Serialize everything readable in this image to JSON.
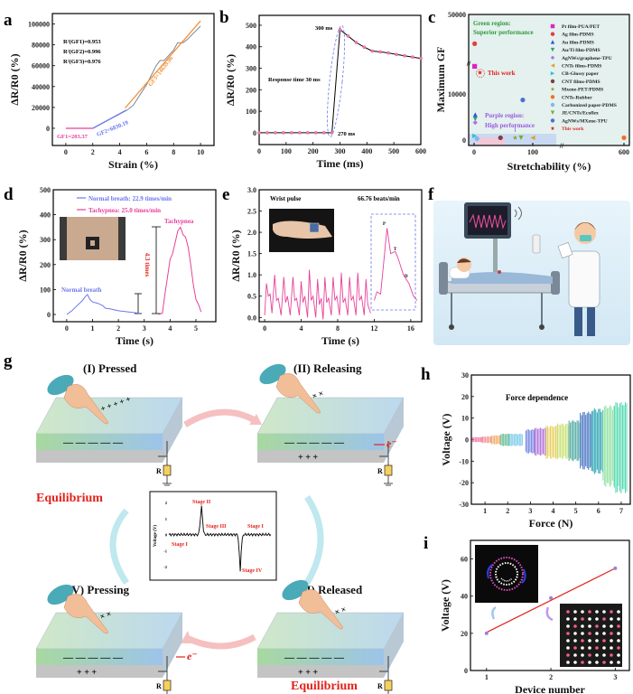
{
  "panel_labels": {
    "a": "a",
    "b": "b",
    "c": "c",
    "d": "d",
    "e": "e",
    "f": "f",
    "g": "g",
    "h": "h",
    "i": "i"
  },
  "colors": {
    "pink": "#e8409a",
    "blue": "#6a78ee",
    "orange": "#f0903a",
    "red": "#e3221b",
    "green_text": "#2e9a3a",
    "purple_text": "#9a5ce0"
  },
  "chart_data": [
    {
      "panel": "a",
      "type": "line",
      "xlabel": "Strain (%)",
      "ylabel": "ΔR/R0 (%)",
      "xlim": [
        -1,
        11
      ],
      "ylim": [
        -16500,
        110000
      ],
      "xticks": [
        0,
        2,
        4,
        6,
        8,
        10
      ],
      "yticks": [
        0,
        20000,
        40000,
        60000,
        80000,
        100000
      ],
      "measured": {
        "color": "#6d7a8c",
        "points": [
          [
            0,
            0
          ],
          [
            2,
            0
          ],
          [
            4.5,
            17000
          ],
          [
            5,
            22000
          ],
          [
            6,
            42000
          ],
          [
            6.7,
            60000
          ],
          [
            7,
            65000
          ],
          [
            7.3,
            65000
          ],
          [
            8,
            75000
          ],
          [
            8.3,
            82000
          ],
          [
            8.7,
            82000
          ],
          [
            9,
            85000
          ],
          [
            10,
            98000
          ]
        ]
      },
      "fits": [
        {
          "label": "GF1=203.37",
          "color": "#e8409a",
          "points": [
            [
              0,
              0
            ],
            [
              2,
              0
            ]
          ]
        },
        {
          "label": "GF2=6830.19",
          "color": "#6a78ee",
          "points": [
            [
              2,
              0
            ],
            [
              4.5,
              17500
            ]
          ]
        },
        {
          "label": "GF3=14639.96",
          "color": "#f0903a",
          "points": [
            [
              4.4,
              19500
            ],
            [
              10,
              103000
            ]
          ]
        }
      ],
      "r2": [
        "R²(GF1)=0.953",
        "R²(GF2)=0.996",
        "R²(GF3)=0.976"
      ]
    },
    {
      "panel": "b",
      "type": "line",
      "xlabel": "Time (ms)",
      "ylabel": "ΔR/R0 (%)",
      "xlim": [
        0,
        600
      ],
      "ylim": [
        -55,
        546
      ],
      "xticks": [
        0,
        100,
        200,
        300,
        400,
        500,
        600
      ],
      "yticks": [
        0,
        100,
        200,
        300,
        400,
        500
      ],
      "points": [
        [
          0,
          0
        ],
        [
          30,
          0
        ],
        [
          60,
          0
        ],
        [
          90,
          0
        ],
        [
          120,
          0
        ],
        [
          150,
          0
        ],
        [
          180,
          0
        ],
        [
          210,
          0
        ],
        [
          240,
          0
        ],
        [
          270,
          0
        ],
        [
          300,
          480
        ],
        [
          330,
          450
        ],
        [
          360,
          420
        ],
        [
          390,
          398
        ],
        [
          420,
          380
        ],
        [
          450,
          376
        ],
        [
          480,
          371
        ],
        [
          510,
          364
        ],
        [
          540,
          358
        ],
        [
          570,
          352
        ],
        [
          600,
          346
        ]
      ],
      "annotations": [
        "300 ms",
        "270 ms",
        "Response time 30 ms"
      ]
    },
    {
      "panel": "c",
      "type": "scatter",
      "xlabel": "Stretchability (%)",
      "ylabel": "Maximum GF",
      "xaxis_break": [
        150,
        550
      ],
      "yaxis_break": [
        16500,
        20000
      ],
      "xticks": [
        0,
        100,
        600
      ],
      "yticks": [
        0,
        10000,
        50000
      ],
      "regions": [
        {
          "label": "Green region:",
          "label2": "Superior performance",
          "color": "#2e9a3a",
          "fill": "#e4f1ee"
        },
        {
          "label": "Purple region:",
          "label2": "High performance",
          "color": "#9a5ce0",
          "fill": "#c9d9f2"
        }
      ],
      "this_work_label": "This work",
      "series": [
        {
          "name": "Pt film-PUA/PET",
          "marker": "square",
          "color": "#e020c8",
          "x": 1,
          "y": 16000
        },
        {
          "name": "Ag film-PDMS",
          "marker": "circle",
          "color": "#e04040",
          "x": 1,
          "y": 32000
        },
        {
          "name": "Au film-PDMS",
          "marker": "triangle-up",
          "color": "#3050e0",
          "x": 2,
          "y": 5500
        },
        {
          "name": "Au/Ti film-PDMS",
          "marker": "triangle-down",
          "color": "#30a070",
          "x": 2,
          "y": 4600
        },
        {
          "name": "AgNWs/graphene-TPU",
          "marker": "diamond",
          "color": "#b070e0",
          "x": 2,
          "y": 3800
        },
        {
          "name": "CNTs films-PDMS",
          "marker": "triangle-left",
          "color": "#e0a030",
          "x": 100,
          "y": 500
        },
        {
          "name": "CB-Glossy paper",
          "marker": "triangle-right",
          "color": "#30c0d0",
          "x": 1,
          "y": 900
        },
        {
          "name": "CNT films-PDMS",
          "marker": "circle",
          "color": "#7a4040",
          "x": 45,
          "y": 500
        },
        {
          "name": "Mxene-PET/PDMS",
          "marker": "star",
          "color": "#90a030",
          "x": 70,
          "y": 500
        },
        {
          "name": "CNTs-Rubber",
          "marker": "circle",
          "color": "#f07020",
          "x": 600,
          "y": 500
        },
        {
          "name": "Carbonized paper-PDMS",
          "marker": "circle",
          "color": "#80b8e8",
          "x": 5,
          "y": 300
        },
        {
          "name": "JE/CNTs/Ecoflex",
          "marker": "triangle-down",
          "color": "#70b030",
          "x": 80,
          "y": 500
        },
        {
          "name": "AgNWs/MXene-TPU",
          "marker": "circle",
          "color": "#5070d0",
          "x": 83,
          "y": 8700
        },
        {
          "name": "This work",
          "marker": "star",
          "color": "#e3221b",
          "x": 10,
          "y": 14640
        }
      ]
    },
    {
      "panel": "d",
      "type": "line",
      "xlabel": "Time (s)",
      "ylabel": "ΔR/R0 (%)",
      "xlim": [
        -0.52,
        5.77
      ],
      "ylim": [
        -29,
        500
      ],
      "xticks": [
        0,
        1,
        2,
        3,
        4,
        5
      ],
      "yticks": [
        0,
        100,
        200,
        300,
        400,
        500
      ],
      "series": [
        {
          "name": "Normal breath: 22.9 times/min",
          "color": "#6a78ee",
          "points": [
            [
              0,
              0
            ],
            [
              0.2,
              15
            ],
            [
              0.4,
              35
            ],
            [
              0.6,
              55
            ],
            [
              0.75,
              75
            ],
            [
              0.8,
              80
            ],
            [
              0.9,
              60
            ],
            [
              1.0,
              50
            ],
            [
              1.2,
              45
            ],
            [
              1.4,
              35
            ],
            [
              1.5,
              25
            ],
            [
              1.7,
              22
            ],
            [
              2,
              15
            ],
            [
              2.4,
              10
            ],
            [
              2.8,
              5
            ]
          ]
        },
        {
          "name": "Tachypnea: 25.0 times/min",
          "color": "#e8409a",
          "points": [
            [
              3.55,
              0
            ],
            [
              3.7,
              5
            ],
            [
              3.8,
              80
            ],
            [
              3.9,
              150
            ],
            [
              4.0,
              220
            ],
            [
              4.1,
              245
            ],
            [
              4.2,
              290
            ],
            [
              4.3,
              335
            ],
            [
              4.4,
              350
            ],
            [
              4.5,
              320
            ],
            [
              4.6,
              310
            ],
            [
              4.7,
              270
            ],
            [
              4.8,
              200
            ],
            [
              4.9,
              120
            ],
            [
              5.0,
              60
            ],
            [
              5.1,
              40
            ],
            [
              5.2,
              10
            ]
          ]
        }
      ],
      "annotations": {
        "normal": "Normal breath",
        "tachy": "Tachypnea",
        "ratio": "4.3 times"
      }
    },
    {
      "panel": "e",
      "type": "line",
      "xlabel": "Time (s)",
      "ylabel": "ΔR/R0 (%)",
      "xlim": [
        -0.6,
        17.2
      ],
      "ylim": [
        -0.1,
        3.0
      ],
      "xticks": [
        0,
        4,
        8,
        12,
        16
      ],
      "yticks": [
        0.0,
        0.5,
        1.0,
        1.5,
        2.0,
        2.5,
        3.0
      ],
      "ytick_labels": [
        "0.0",
        "0.5",
        "1.0",
        "1.5",
        "2.0",
        "2.5",
        "3.0"
      ],
      "title": "Wrist pulse",
      "rate": "66.76 beats/min",
      "color": "#e8409a",
      "points": [
        [
          0,
          0.05
        ],
        [
          0.2,
          0.8
        ],
        [
          0.4,
          0.5
        ],
        [
          0.6,
          0.55
        ],
        [
          0.8,
          0.1
        ],
        [
          1.1,
          1.0
        ],
        [
          1.3,
          0.4
        ],
        [
          1.5,
          0.45
        ],
        [
          1.8,
          0.05
        ],
        [
          2.1,
          0.95
        ],
        [
          2.3,
          0.35
        ],
        [
          2.5,
          0.5
        ],
        [
          2.8,
          0.05
        ],
        [
          3.1,
          0.95
        ],
        [
          3.3,
          0.4
        ],
        [
          3.5,
          0.45
        ],
        [
          3.8,
          0.05
        ],
        [
          4.0,
          0.85
        ],
        [
          4.2,
          0.35
        ],
        [
          4.4,
          0.5
        ],
        [
          4.7,
          0.0
        ],
        [
          4.9,
          1.12
        ],
        [
          5.1,
          0.4
        ],
        [
          5.3,
          0.5
        ],
        [
          5.6,
          0.0
        ],
        [
          5.8,
          0.9
        ],
        [
          6.0,
          0.3
        ],
        [
          6.2,
          0.45
        ],
        [
          6.4,
          -0.05
        ],
        [
          6.6,
          0.95
        ],
        [
          6.8,
          0.35
        ],
        [
          7.0,
          0.45
        ],
        [
          7.3,
          0.05
        ],
        [
          7.5,
          0.95
        ],
        [
          7.7,
          0.4
        ],
        [
          7.9,
          0.5
        ],
        [
          8.2,
          0.05
        ],
        [
          8.4,
          1.05
        ],
        [
          8.6,
          0.35
        ],
        [
          8.8,
          0.45
        ],
        [
          9.1,
          0.05
        ],
        [
          9.3,
          0.95
        ],
        [
          9.5,
          0.4
        ],
        [
          9.7,
          0.5
        ],
        [
          10.0,
          0.05
        ],
        [
          10.2,
          1.05
        ],
        [
          10.4,
          0.4
        ],
        [
          10.6,
          0.5
        ],
        [
          10.9,
          0.05
        ],
        [
          11.1,
          0.9
        ],
        [
          11.3,
          0.3
        ],
        [
          11.6,
          0.1
        ]
      ],
      "zoom_points": [
        [
          12,
          0.4
        ],
        [
          12.3,
          0.6
        ],
        [
          12.7,
          0.55
        ],
        [
          13,
          1.2
        ],
        [
          13.4,
          2.1
        ],
        [
          13.8,
          1.5
        ],
        [
          14.3,
          1.55
        ],
        [
          14.6,
          1.4
        ],
        [
          15.2,
          1.0
        ],
        [
          15.8,
          0.8
        ],
        [
          16.3,
          0.5
        ],
        [
          16.7,
          0.4
        ]
      ],
      "wave_labels": [
        "P",
        "T",
        "D"
      ]
    },
    {
      "panel": "h",
      "type": "bar",
      "xlabel": "Force (N)",
      "ylabel": "Voltage (V)",
      "title": "Force dependence",
      "xlim": [
        0.4,
        7.4
      ],
      "ylim": [
        -30,
        30
      ],
      "xticks": [
        1,
        2,
        3,
        4,
        5,
        6,
        7
      ],
      "yticks": [
        -30,
        -20,
        -10,
        0,
        10,
        20,
        30
      ],
      "groups": [
        {
          "from": 0.45,
          "to": 0.9,
          "max": 1.2,
          "min": -1.2,
          "color": "#f06ca0"
        },
        {
          "from": 0.9,
          "to": 1.3,
          "max": 1.5,
          "min": -1.6,
          "color": "#f08c8c"
        },
        {
          "from": 1.3,
          "to": 1.7,
          "max": 2.0,
          "min": -2.2,
          "color": "#f0a860"
        },
        {
          "from": 1.7,
          "to": 2.1,
          "max": 2.8,
          "min": -3.0,
          "color": "#60b890"
        },
        {
          "from": 2.1,
          "to": 2.7,
          "max": 2.8,
          "min": -3.0,
          "color": "#78c8e8"
        },
        {
          "from": 2.8,
          "to": 3.2,
          "max": 4.8,
          "min": -6.5,
          "color": "#7080e0"
        },
        {
          "from": 3.2,
          "to": 3.7,
          "max": 5.5,
          "min": -7.5,
          "color": "#b070d8"
        },
        {
          "from": 3.7,
          "to": 4.2,
          "max": 6.5,
          "min": -9.0,
          "color": "#e8d060"
        },
        {
          "from": 4.2,
          "to": 4.7,
          "max": 7.5,
          "min": -9.0,
          "color": "#c8e070"
        },
        {
          "from": 4.7,
          "to": 5.2,
          "max": 9.0,
          "min": -10.0,
          "color": "#4aa8a0"
        },
        {
          "from": 5.2,
          "to": 5.7,
          "max": 13.0,
          "min": -14.0,
          "color": "#4070c0"
        },
        {
          "from": 5.7,
          "to": 6.2,
          "max": 14.5,
          "min": -16.0,
          "color": "#20a0b0"
        },
        {
          "from": 6.2,
          "to": 6.7,
          "max": 16.0,
          "min": -22.0,
          "color": "#90e0a0"
        },
        {
          "from": 6.7,
          "to": 7.25,
          "max": 17.5,
          "min": -25.0,
          "color": "#50d8b0"
        }
      ]
    },
    {
      "panel": "i",
      "type": "line",
      "xlabel": "Device number",
      "ylabel": "Voltage (V)",
      "xlim": [
        0.75,
        3.22
      ],
      "ylim": [
        0,
        70
      ],
      "xticks": [
        1,
        2,
        3
      ],
      "yticks": [
        0,
        20,
        40,
        60
      ],
      "points": [
        [
          1,
          20
        ],
        [
          2,
          39
        ],
        [
          3,
          55
        ]
      ],
      "fit": [
        [
          1,
          20.5
        ],
        [
          3,
          55
        ]
      ],
      "point_color": "#9a80e0",
      "fit_color": "#e3221b"
    },
    {
      "panel": "g-inset",
      "type": "line",
      "ylabel": "Voltage (V)",
      "xlim": [
        0,
        100
      ],
      "ylim": [
        -2.5,
        2.34
      ],
      "yticks": [
        -2,
        -1,
        0,
        1,
        2
      ],
      "stage_labels": [
        "Stage I",
        "Stage II",
        "Stage III",
        "Stage I",
        "Stage IV"
      ]
    }
  ],
  "panel_g": {
    "stages": [
      "(I) Pressed",
      "(II) Releasing",
      "(III) Released",
      "(IV) Pressing"
    ],
    "equilibrium": "Equilibrium",
    "resistor": "R",
    "electron": "e⁻",
    "neg_charges": "— — — — —",
    "pos_charges": "+ + +",
    "finger_pos": "+ +\n+ + +",
    "finger_x": "× ×"
  }
}
